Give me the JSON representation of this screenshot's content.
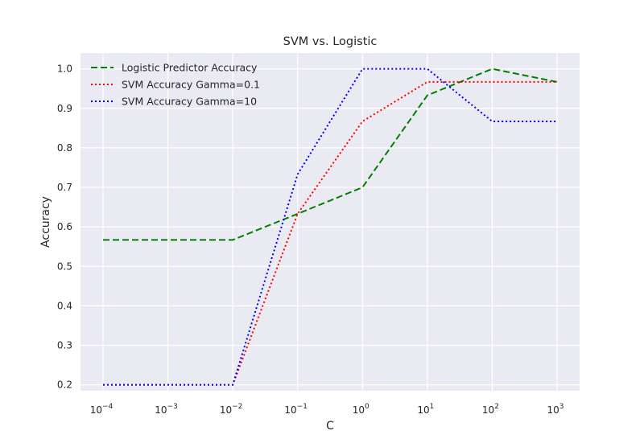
{
  "chart_data": {
    "type": "line",
    "title": "SVM vs. Logistic",
    "xlabel": "C",
    "ylabel": "Accuracy",
    "xscale": "log",
    "x": [
      0.0001,
      0.001,
      0.01,
      0.1,
      1,
      10,
      100,
      1000
    ],
    "xticks": [
      {
        "base": "10",
        "exp": "−4"
      },
      {
        "base": "10",
        "exp": "−3"
      },
      {
        "base": "10",
        "exp": "−2"
      },
      {
        "base": "10",
        "exp": "−1"
      },
      {
        "base": "10",
        "exp": "0"
      },
      {
        "base": "10",
        "exp": "1"
      },
      {
        "base": "10",
        "exp": "2"
      },
      {
        "base": "10",
        "exp": "3"
      }
    ],
    "yticks": [
      "0.2",
      "0.3",
      "0.4",
      "0.5",
      "0.6",
      "0.7",
      "0.8",
      "0.9",
      "1.0"
    ],
    "ylim": [
      0.185,
      1.04
    ],
    "grid": true,
    "legend_position": "top-left",
    "series": [
      {
        "name": "Logistic Predictor Accuracy",
        "color": "#008000",
        "style": "dashed",
        "values": [
          0.567,
          0.567,
          0.567,
          0.633,
          0.7,
          0.933,
          1.0,
          0.967
        ]
      },
      {
        "name": "SVM Accuracy Gamma=0.1",
        "color": "#ff0000",
        "style": "dotted",
        "values": [
          0.2,
          0.2,
          0.2,
          0.633,
          0.867,
          0.967,
          0.967,
          0.967
        ]
      },
      {
        "name": "SVM Accuracy Gamma=10",
        "color": "#0000ff",
        "style": "dotted",
        "values": [
          0.2,
          0.2,
          0.2,
          0.733,
          1.0,
          1.0,
          0.867,
          0.867
        ]
      }
    ]
  }
}
